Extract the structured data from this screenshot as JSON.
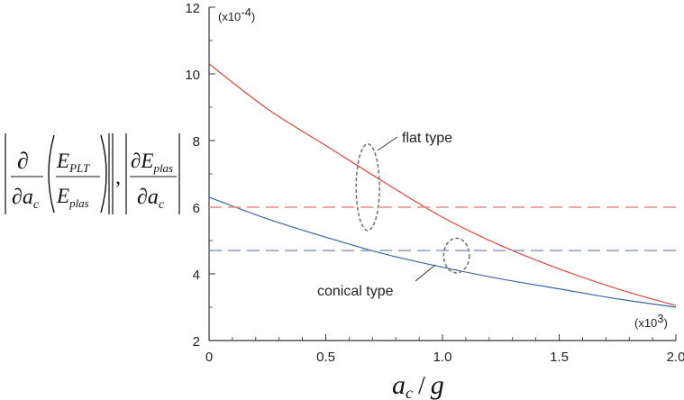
{
  "chart_data": {
    "type": "line",
    "title": "",
    "xlabel": "a_c / g",
    "ylabel": "|∂/∂a_c (E_PLT / E_plas)|, |∂E_plas / ∂a_c|",
    "xlim": [
      0,
      2.0
    ],
    "ylim": [
      2,
      12
    ],
    "x_ticks": [
      "0",
      "0.5",
      "1.0",
      "1.5",
      "2.0"
    ],
    "y_ticks": [
      "2",
      "4",
      "6",
      "8",
      "10",
      "12"
    ],
    "x_multiplier": "(x10³)",
    "y_multiplier": "(x10⁻⁴)",
    "grid": false,
    "x": [
      0,
      0.25,
      0.5,
      0.75,
      1.0,
      1.25,
      1.5,
      1.75,
      2.0
    ],
    "series": [
      {
        "group": "flat type",
        "style": "solid",
        "color": "#d9473c",
        "values": [
          10.3,
          8.95,
          7.85,
          6.75,
          5.7,
          4.85,
          4.15,
          3.55,
          3.05
        ]
      },
      {
        "group": "conical type",
        "style": "solid",
        "color": "#3a66a8",
        "values": [
          6.3,
          5.65,
          5.1,
          4.6,
          4.2,
          3.85,
          3.55,
          3.25,
          3.0
        ]
      },
      {
        "group": "flat type",
        "style": "dashed",
        "color": "#e08a80",
        "values": [
          6.0,
          6.0,
          6.0,
          6.0,
          6.0,
          6.0,
          6.0,
          6.0,
          6.0
        ]
      },
      {
        "group": "conical type",
        "style": "dashed",
        "color": "#7f93bf",
        "values": [
          4.7,
          4.7,
          4.7,
          4.7,
          4.7,
          4.7,
          4.7,
          4.7,
          4.7
        ]
      }
    ],
    "annotations": [
      {
        "text": "flat type",
        "target_x": 0.7,
        "target_y": 6.7
      },
      {
        "text": "conical type",
        "target_x": 1.05,
        "target_y": 4.5
      }
    ],
    "ellipse_marks": [
      {
        "cx": 0.68,
        "cy": 6.6,
        "rx": 0.05,
        "ry": 1.3
      },
      {
        "cx": 1.06,
        "cy": 4.55,
        "rx": 0.055,
        "ry": 0.52
      }
    ]
  },
  "labels": {
    "flat": "flat type",
    "conical": "conical type",
    "x_mult_base": "(x10",
    "x_mult_exp": "3",
    "y_mult_base": "(x10",
    "y_mult_exp": "-4",
    "close": ")",
    "xlabel_a": "a",
    "xlabel_sub": "c",
    "xlabel_slash": "/",
    "xlabel_g": "g",
    "partial": "∂",
    "E": "E",
    "PLT": "PLT",
    "plas": "plas",
    "a": "a",
    "c": "c",
    "comma": ","
  }
}
